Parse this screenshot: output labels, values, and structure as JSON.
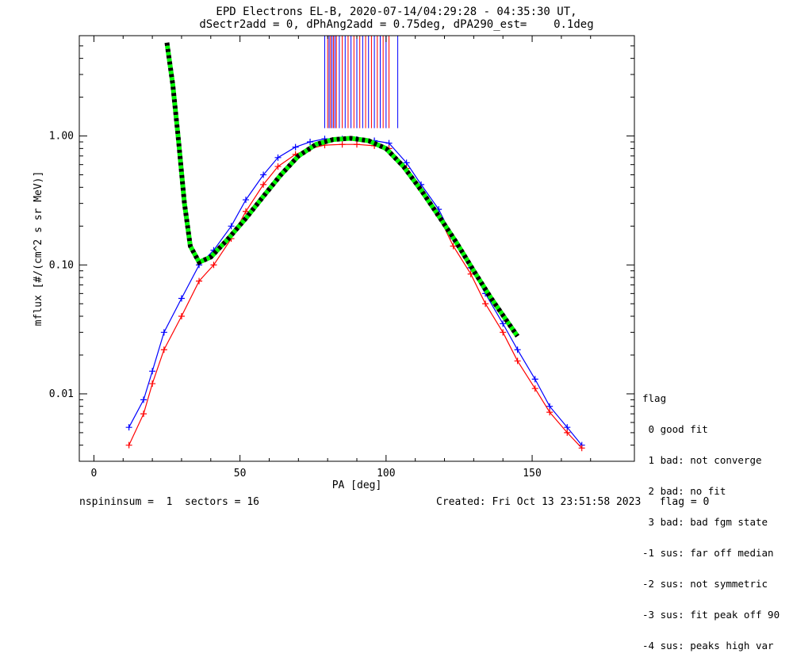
{
  "chart_data": {
    "type": "line",
    "title": "EPD Electrons EL-B, 2020-07-14/04:29:28 - 04:35:30 UT,",
    "subtitle": "dSectr2add = 0, dPhAng2add = 0.75deg, dPA290_est=    0.1deg",
    "xlabel": "PA [deg]",
    "ylabel": "mflux [#/(cm^2 s sr MeV)]",
    "xlim": [
      -5,
      185
    ],
    "ylim": [
      0.003,
      6.0
    ],
    "yscale": "log",
    "x_ticks": [
      0,
      50,
      100,
      150
    ],
    "y_ticks": [
      0.01,
      0.1,
      1.0
    ],
    "y_tick_labels": [
      "0.01",
      "0.10",
      "1.00"
    ],
    "grid": false,
    "series": [
      {
        "color": "#0000ff",
        "marker": "+",
        "x": [
          12,
          17,
          20,
          24,
          30,
          36,
          41,
          47,
          52,
          58,
          63,
          69,
          74,
          79,
          85,
          90,
          96,
          101,
          107,
          112,
          118,
          123,
          129,
          134,
          140,
          145,
          151,
          156,
          162,
          167
        ],
        "values": [
          0.0055,
          0.009,
          0.015,
          0.03,
          0.055,
          0.1,
          0.13,
          0.2,
          0.32,
          0.5,
          0.68,
          0.82,
          0.9,
          0.95,
          0.95,
          0.94,
          0.92,
          0.88,
          0.62,
          0.42,
          0.27,
          0.16,
          0.095,
          0.06,
          0.035,
          0.022,
          0.013,
          0.008,
          0.0055,
          0.004
        ]
      },
      {
        "color": "#ff0000",
        "marker": "+",
        "x": [
          12,
          17,
          20,
          24,
          30,
          36,
          41,
          47,
          52,
          58,
          63,
          69,
          74,
          79,
          85,
          90,
          96,
          101,
          107,
          112,
          118,
          123,
          129,
          134,
          140,
          145,
          151,
          156,
          162,
          167
        ],
        "values": [
          0.004,
          0.007,
          0.012,
          0.022,
          0.04,
          0.075,
          0.1,
          0.16,
          0.26,
          0.42,
          0.58,
          0.72,
          0.8,
          0.85,
          0.86,
          0.86,
          0.84,
          0.8,
          0.56,
          0.38,
          0.24,
          0.14,
          0.085,
          0.05,
          0.03,
          0.018,
          0.011,
          0.0072,
          0.005,
          0.0038
        ]
      },
      {
        "color": "#00ff00",
        "style": "dotted-thick",
        "x": [
          25,
          27,
          29,
          31,
          33,
          36,
          40,
          46,
          52,
          58,
          64,
          70,
          76,
          82,
          88,
          94,
          100,
          106,
          112,
          118,
          124,
          130,
          136,
          142,
          145
        ],
        "values": [
          5.3,
          2.5,
          0.9,
          0.3,
          0.14,
          0.105,
          0.115,
          0.16,
          0.23,
          0.34,
          0.5,
          0.7,
          0.86,
          0.94,
          0.96,
          0.92,
          0.8,
          0.58,
          0.38,
          0.24,
          0.15,
          0.09,
          0.055,
          0.035,
          0.028
        ]
      }
    ],
    "vertical_spikes_x": [
      79,
      80,
      80.5,
      81,
      81.5,
      82,
      82.5,
      83,
      84,
      85,
      86,
      87,
      88,
      89,
      90,
      91,
      92,
      93,
      94,
      95,
      96,
      97,
      98,
      99,
      100,
      101,
      104
    ],
    "vertical_spikes_from": 1.15
  },
  "footer": {
    "left": "nspininsum =  1  sectors = 16",
    "right": "Created: Fri Oct 13 23:51:58 2023   flag = 0"
  },
  "legend": {
    "title": "flag",
    "items": [
      " 0 good fit",
      " 1 bad: not converge",
      " 2 bad: no fit",
      " 3 bad: bad fgm state",
      "-1 sus: far off median",
      "-2 sus: not symmetric",
      "-3 sus: fit peak off 90",
      "-4 sus: peaks high var"
    ]
  }
}
